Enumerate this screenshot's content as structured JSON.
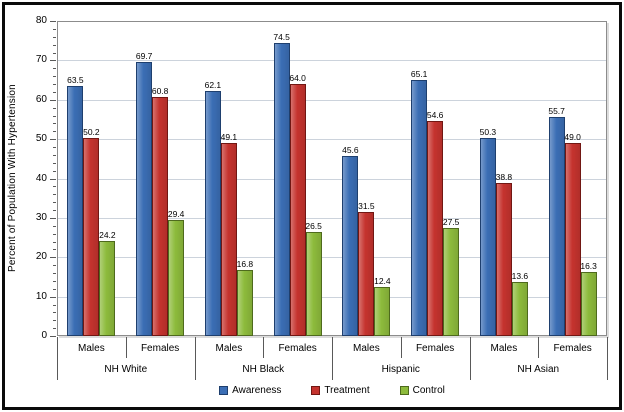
{
  "chart_data": {
    "type": "bar",
    "title": "",
    "ylabel": "Percent of Population With Hypertension",
    "xlabel": "",
    "ylim": [
      0,
      80
    ],
    "ytick_major": 10,
    "ytick_minor": 2,
    "grid": "horizontal",
    "legend_position": "bottom",
    "groups": [
      "NH White",
      "NH Black",
      "Hispanic",
      "NH Asian"
    ],
    "subcategories": [
      "Males",
      "Females"
    ],
    "series": [
      {
        "name": "Awareness",
        "color": "#3B6EB5",
        "border_color": "#1E3F6E",
        "values": [
          63.5,
          69.7,
          62.1,
          74.5,
          45.6,
          65.1,
          50.3,
          55.7
        ]
      },
      {
        "name": "Treatment",
        "color": "#C5332E",
        "border_color": "#711713",
        "values": [
          50.2,
          60.8,
          49.1,
          64.0,
          31.5,
          54.6,
          38.8,
          49.0
        ]
      },
      {
        "name": "Control",
        "color": "#8DBB3C",
        "border_color": "#4E6A1D",
        "values": [
          24.2,
          29.4,
          16.8,
          26.5,
          12.4,
          27.5,
          13.6,
          16.3
        ]
      }
    ],
    "value_label_decimals": 1
  }
}
